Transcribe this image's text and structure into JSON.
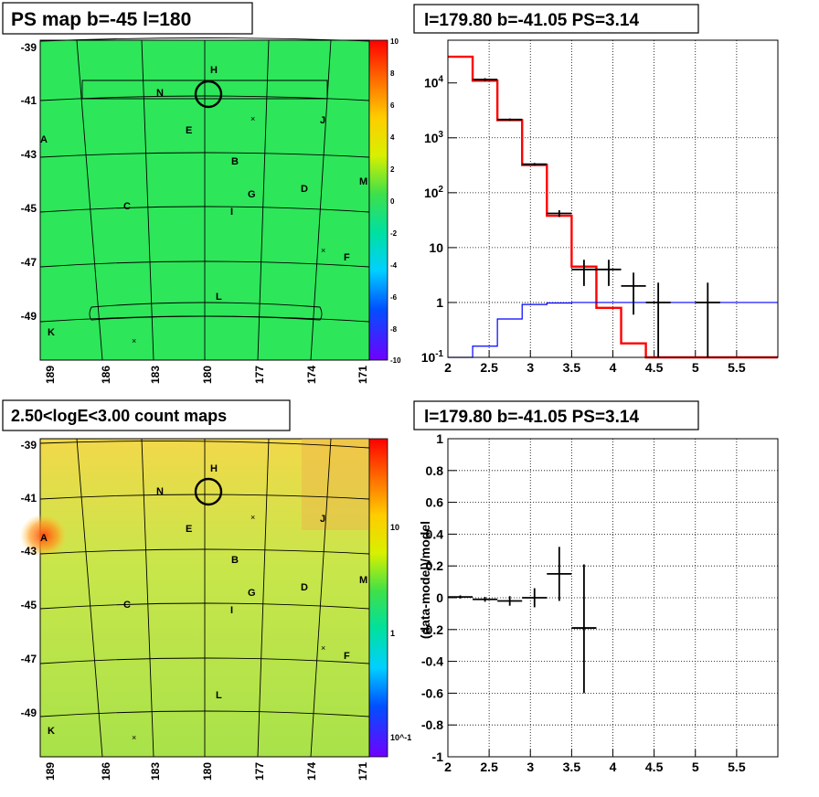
{
  "panels": {
    "ps_map_title": "PS map b=-45 l=180",
    "count_map_title": "2.50<logE<3.00 count maps",
    "spectrum_title": "l=179.80 b=-41.05 PS=3.14",
    "residual_title": "l=179.80 b=-41.05 PS=3.14"
  },
  "maps": {
    "y_ticks": [
      "-39",
      "-41",
      "-43",
      "-45",
      "-47",
      "-49"
    ],
    "x_ticks": [
      "189",
      "186",
      "183",
      "180",
      "177",
      "174",
      "171"
    ],
    "source_labels": [
      "H",
      "N",
      "E",
      "J",
      "A",
      "B",
      "G",
      "D",
      "M",
      "C",
      "I",
      "F",
      "L",
      "K"
    ],
    "ps_colorbar_ticks": [
      "10",
      "8",
      "6",
      "4",
      "2",
      "0",
      "-2",
      "-4",
      "-6",
      "-8",
      "-10"
    ],
    "count_colorbar_ticks": [
      "10",
      "1",
      "10^-1"
    ],
    "colors": {
      "ps_background": "#2ee65a",
      "count_background": "#b8e84a",
      "hot_spot": "#ff5a1a",
      "grid": "#000000"
    }
  },
  "chart_data": [
    {
      "type": "line",
      "title": "l=179.80 b=-41.05 PS=3.14",
      "xlabel": "",
      "ylabel": "",
      "log_y": true,
      "xlim": [
        2.0,
        6.0
      ],
      "ylim": [
        0.1,
        60000
      ],
      "x_ticks": [
        "2",
        "2.5",
        "3",
        "3.5",
        "4",
        "4.5",
        "5",
        "5.5"
      ],
      "y_ticks": [
        "10^-1",
        "1",
        "10",
        "10^2",
        "10^3",
        "10^4"
      ],
      "grid": true,
      "series": [
        {
          "color": "#ff0000",
          "style": "step",
          "edges": [
            2.0,
            2.3,
            2.6,
            2.9,
            3.2,
            3.5,
            3.8,
            4.1,
            4.4,
            6.0
          ],
          "values": [
            30000,
            11000,
            2100,
            320,
            38,
            4.5,
            0.8,
            0.18,
            0.1
          ]
        },
        {
          "color": "#0000ff",
          "style": "step",
          "edges": [
            2.0,
            2.3,
            2.6,
            2.9,
            3.2,
            3.5,
            3.8,
            6.0
          ],
          "values": [
            0.1,
            0.16,
            0.5,
            0.92,
            0.98,
            1.0,
            1.0
          ]
        },
        {
          "color": "#000000",
          "style": "errorbar",
          "points": [
            {
              "x": 2.45,
              "y": 11500,
              "xerr": 0.15,
              "ylo": 10800,
              "yhi": 12200
            },
            {
              "x": 2.75,
              "y": 2150,
              "xerr": 0.15,
              "ylo": 2050,
              "yhi": 2250
            },
            {
              "x": 3.05,
              "y": 330,
              "xerr": 0.15,
              "ylo": 312,
              "yhi": 348
            },
            {
              "x": 3.35,
              "y": 42,
              "xerr": 0.15,
              "ylo": 36,
              "yhi": 48
            },
            {
              "x": 3.65,
              "y": 4,
              "xerr": 0.15,
              "ylo": 2,
              "yhi": 6
            },
            {
              "x": 3.95,
              "y": 4,
              "xerr": 0.15,
              "ylo": 2,
              "yhi": 6
            },
            {
              "x": 4.25,
              "y": 2,
              "xerr": 0.15,
              "ylo": 0.6,
              "yhi": 3.5
            },
            {
              "x": 4.55,
              "y": 1,
              "xerr": 0.15,
              "ylo": 0.1,
              "yhi": 2.3
            },
            {
              "x": 5.15,
              "y": 1,
              "xerr": 0.15,
              "ylo": 0.1,
              "yhi": 2.3
            }
          ]
        }
      ]
    },
    {
      "type": "scatter",
      "title": "l=179.80 b=-41.05 PS=3.14",
      "xlabel": "",
      "ylabel": "(data-model)/model",
      "xlim": [
        2.0,
        6.0
      ],
      "ylim": [
        -1.0,
        1.0
      ],
      "x_ticks": [
        "2",
        "2.5",
        "3",
        "3.5",
        "4",
        "4.5",
        "5",
        "5.5"
      ],
      "y_ticks": [
        "-1",
        "-0.8",
        "-0.6",
        "-0.4",
        "-0.2",
        "0",
        "0.2",
        "0.4",
        "0.6",
        "0.8",
        "1"
      ],
      "grid": true,
      "series": [
        {
          "color": "#000000",
          "style": "errorbar",
          "points": [
            {
              "x": 2.15,
              "y": 0.005,
              "xerr": 0.15,
              "ylo": -0.005,
              "yhi": 0.015
            },
            {
              "x": 2.45,
              "y": -0.01,
              "xerr": 0.15,
              "ylo": -0.025,
              "yhi": 0.005
            },
            {
              "x": 2.75,
              "y": -0.02,
              "xerr": 0.15,
              "ylo": -0.05,
              "yhi": 0.01
            },
            {
              "x": 3.05,
              "y": 0.0,
              "xerr": 0.15,
              "ylo": -0.06,
              "yhi": 0.06
            },
            {
              "x": 3.35,
              "y": 0.15,
              "xerr": 0.15,
              "ylo": -0.02,
              "yhi": 0.32
            },
            {
              "x": 3.65,
              "y": -0.19,
              "xerr": 0.15,
              "ylo": -0.6,
              "yhi": 0.21
            }
          ]
        }
      ]
    }
  ]
}
